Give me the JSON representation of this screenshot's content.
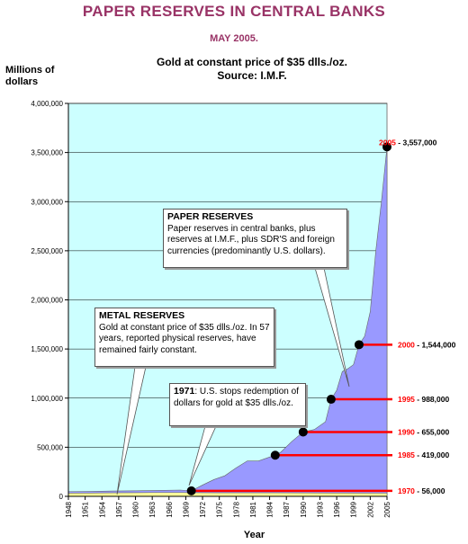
{
  "header": {
    "title": "PAPER RESERVES IN CENTRAL BANKS",
    "date": "MAY 2005.",
    "subtitle1": "Gold at constant price of $35 dlls./oz.",
    "subtitle2": "Source: I.M.F."
  },
  "colors": {
    "plot_bg": "#ccffff",
    "paper_area": "#9999ff",
    "metal_area": "#ffff99",
    "marker_line": "#ff0000",
    "title": "#993366",
    "year_label": "#ff0000"
  },
  "callouts": {
    "paper_title": "PAPER RESERVES",
    "paper_text": "Paper reserves in central banks, plus reserves at I.M.F., plus SDR'S and foreign currencies (predominantly U.S. dollars).",
    "metal_title": "METAL RESERVES",
    "metal_text": "Gold at constant price of $35 dlls./oz. In 57 years, reported physical reserves, have remained fairly constant.",
    "y1971_title": "1971",
    "y1971_text": ": U.S. stops redemption of dollars for gold at $35 dlls./oz."
  },
  "chart_data": {
    "type": "area",
    "ylabel": "Millions of dollars",
    "xlabel": "Year",
    "ylim": [
      0,
      4000000
    ],
    "yticks": [
      "0",
      "500,000",
      "1,000,000",
      "1,500,000",
      "2,000,000",
      "2,500,000",
      "3,000,000",
      "3,500,000",
      "4,000,000"
    ],
    "xticks": [
      "1948",
      "1951",
      "1954",
      "1957",
      "1960",
      "1963",
      "1966",
      "1969",
      "1972",
      "1975",
      "1978",
      "1981",
      "1984",
      "1987",
      "1990",
      "1993",
      "1996",
      "1999",
      "2002",
      "2005"
    ],
    "xlim": [
      1948,
      2005
    ],
    "series": [
      {
        "name": "PAPER RESERVES",
        "x": [
          1948,
          1952,
          1956,
          1960,
          1964,
          1968,
          1970,
          1972,
          1974,
          1976,
          1978,
          1980,
          1982,
          1984,
          1985,
          1986,
          1988,
          1990,
          1992,
          1994,
          1995,
          1996,
          1997,
          1998,
          1999,
          2000,
          2001,
          2002,
          2003,
          2004,
          2005
        ],
        "values": [
          48000,
          50000,
          54000,
          57000,
          60000,
          64000,
          56000,
          115000,
          170000,
          210000,
          290000,
          360000,
          360000,
          400000,
          419000,
          450000,
          560000,
          655000,
          680000,
          760000,
          988000,
          1080000,
          1270000,
          1300000,
          1340000,
          1544000,
          1630000,
          1880000,
          2500000,
          3000000,
          3557000
        ]
      },
      {
        "name": "METAL RESERVES",
        "x": [
          1948,
          1952,
          1956,
          1960,
          1964,
          1968,
          1970,
          1975,
          1980,
          1985,
          1990,
          1995,
          2000,
          2005
        ],
        "values": [
          33000,
          34000,
          36000,
          37000,
          39000,
          39000,
          37000,
          36000,
          36000,
          36000,
          35000,
          34000,
          33000,
          32000
        ]
      }
    ],
    "annotations": [
      {
        "year": "2005",
        "value": "3,557,000",
        "x": 2005,
        "y": 3557000
      },
      {
        "year": "2000",
        "value": "1,544,000",
        "x": 2000,
        "y": 1544000
      },
      {
        "year": "1995",
        "value": "988,000",
        "x": 1995,
        "y": 988000
      },
      {
        "year": "1990",
        "value": "655,000",
        "x": 1990,
        "y": 655000
      },
      {
        "year": "1985",
        "value": "419,000",
        "x": 1985,
        "y": 419000
      },
      {
        "year": "1970",
        "value": "56,000",
        "x": 1970,
        "y": 56000
      }
    ]
  }
}
